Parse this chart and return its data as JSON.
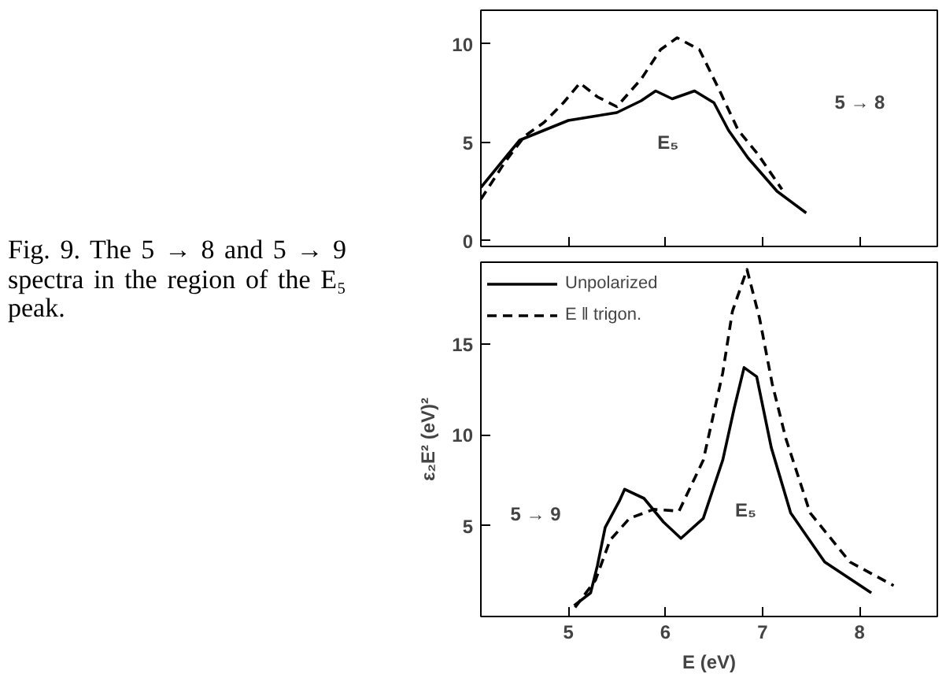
{
  "chart_data": [
    {
      "type": "line",
      "xlim": [
        4.1,
        8.8
      ],
      "ylim": [
        -0.3,
        11.7
      ],
      "xticks": [
        5,
        6,
        7,
        8
      ],
      "yticks": [
        0,
        5,
        10
      ],
      "tick_labels": "y",
      "grid": false,
      "legend": false,
      "annotations": [
        "Fig. 9. The 5 → 8 and 5 → 9 spectra in the region of the E₅ peak.",
        "5 → 8",
        "E₅"
      ],
      "series": [
        {
          "color": "#000000",
          "line_style": "solid",
          "x": [
            4.1,
            4.35,
            4.5,
            4.75,
            5.0,
            5.25,
            5.5,
            5.75,
            5.9,
            6.07,
            6.3,
            6.5,
            6.65,
            6.85,
            7.15,
            7.45
          ],
          "values": [
            2.7,
            4.2,
            5.1,
            5.6,
            6.1,
            6.3,
            6.5,
            7.1,
            7.6,
            7.2,
            7.6,
            7.0,
            5.6,
            4.2,
            2.5,
            1.4
          ]
        },
        {
          "color": "#000000",
          "line_style": "dashed",
          "x": [
            4.1,
            4.35,
            4.55,
            4.75,
            4.95,
            5.12,
            5.3,
            5.5,
            5.75,
            5.95,
            6.12,
            6.35,
            6.55,
            6.75,
            6.95,
            7.2
          ],
          "values": [
            2.1,
            4.0,
            5.3,
            6.0,
            7.0,
            8.0,
            7.3,
            6.8,
            8.2,
            9.7,
            10.3,
            9.7,
            7.7,
            5.6,
            4.4,
            2.6
          ]
        }
      ]
    },
    {
      "type": "line",
      "xlim": [
        4.1,
        8.8
      ],
      "ylim": [
        0,
        19.5
      ],
      "xticks": [
        5,
        6,
        7,
        8
      ],
      "yticks": [
        5,
        10,
        15
      ],
      "xlabel": "E (eV)",
      "ylabel": "ε₂E² (eV)²",
      "grid": false,
      "legend": "top left",
      "annotations": [
        "5 → 9",
        "E₅"
      ],
      "series": [
        {
          "name": "Unpolarized",
          "color": "#000000",
          "line_style": "solid",
          "x": [
            5.06,
            5.23,
            5.3,
            5.38,
            5.53,
            5.58,
            5.78,
            5.98,
            6.16,
            6.39,
            6.59,
            6.71,
            6.81,
            6.94,
            7.09,
            7.29,
            7.64,
            8.12
          ],
          "values": [
            0.6,
            1.3,
            2.8,
            4.9,
            6.4,
            7.0,
            6.5,
            5.2,
            4.3,
            5.4,
            8.6,
            11.5,
            13.7,
            13.2,
            9.3,
            5.7,
            3.0,
            1.3
          ]
        },
        {
          "name": "E ǁ trigon.",
          "color": "#000000",
          "line_style": "dashed",
          "x": [
            5.07,
            5.28,
            5.43,
            5.63,
            5.88,
            6.14,
            6.39,
            6.59,
            6.69,
            6.84,
            6.97,
            7.1,
            7.24,
            7.49,
            7.9,
            8.35
          ],
          "values": [
            0.5,
            2.0,
            4.2,
            5.4,
            5.9,
            5.8,
            8.6,
            13.4,
            16.8,
            19.1,
            16.4,
            12.8,
            9.8,
            5.7,
            3.0,
            1.7
          ]
        }
      ]
    }
  ]
}
